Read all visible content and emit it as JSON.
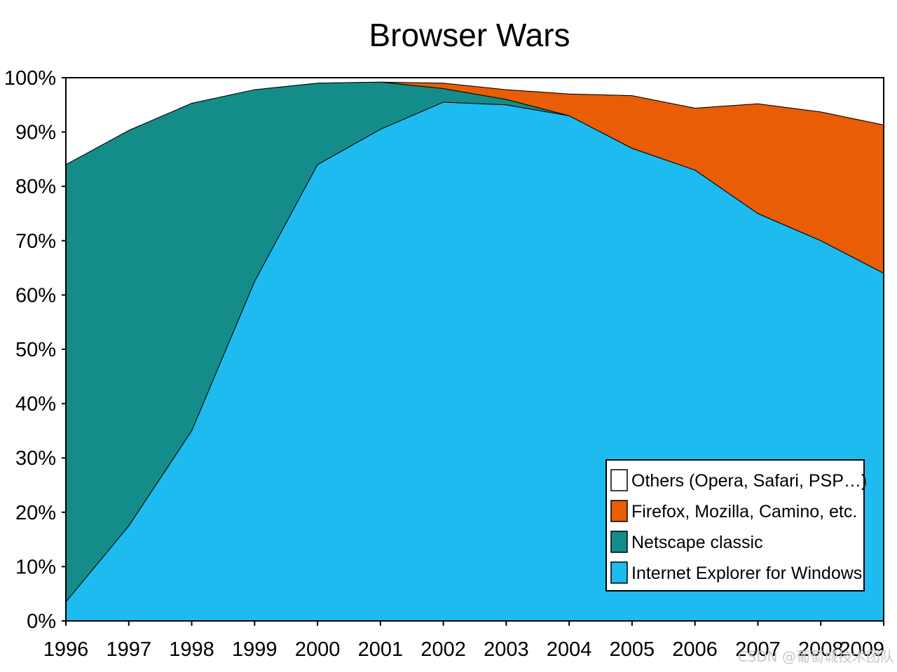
{
  "chart_data": {
    "type": "area",
    "stacked": true,
    "title": "Browser Wars",
    "x": [
      1996,
      1997,
      1998,
      1999,
      2000,
      2001,
      2002,
      2003,
      2004,
      2005,
      2006,
      2007,
      2008,
      2009
    ],
    "x_tick_labels": [
      "1996",
      "1997",
      "1998",
      "1999",
      "2000",
      "2001",
      "2002",
      "2003",
      "2004",
      "2005",
      "2006",
      "2007",
      "2008",
      "2009"
    ],
    "y_tick_labels": [
      "0%",
      "10%",
      "20%",
      "30%",
      "40%",
      "50%",
      "60%",
      "70%",
      "80%",
      "90%",
      "100%"
    ],
    "y_ticks": [
      0,
      10,
      20,
      30,
      40,
      50,
      60,
      70,
      80,
      90,
      100
    ],
    "xlim": [
      1996,
      2009
    ],
    "ylim": [
      0,
      100
    ],
    "grid": false,
    "legend_position": "bottom-right",
    "series": [
      {
        "name": "Internet Explorer for Windows",
        "color": "#1dbbef",
        "values": [
          3.5,
          17.5,
          35,
          62.5,
          84,
          90.5,
          95.5,
          95,
          93,
          87,
          83,
          75,
          70,
          64
        ]
      },
      {
        "name": "Netscape classic",
        "color": "#148d8a",
        "values": [
          80.5,
          72.8,
          60.3,
          35.3,
          15,
          8.7,
          2.5,
          1.0,
          0,
          0,
          0,
          0,
          0,
          0
        ]
      },
      {
        "name": "Firefox, Mozilla, Camino, etc.",
        "color": "#e85d05",
        "values": [
          0,
          0,
          0,
          0,
          0,
          0,
          1.0,
          1.8,
          4,
          9.7,
          11.4,
          20.2,
          23.7,
          27.3
        ]
      },
      {
        "name": "Others (Opera, Safari, PSP…)",
        "color": "#ffffff",
        "values": [
          16,
          9.7,
          4.7,
          2.2,
          1,
          0.8,
          1.0,
          2.2,
          3,
          3.3,
          5.6,
          4.8,
          6.3,
          8.7
        ]
      }
    ],
    "legend_order": [
      3,
      2,
      1,
      0
    ]
  },
  "watermark": "CSDN @葡萄城技术团队"
}
